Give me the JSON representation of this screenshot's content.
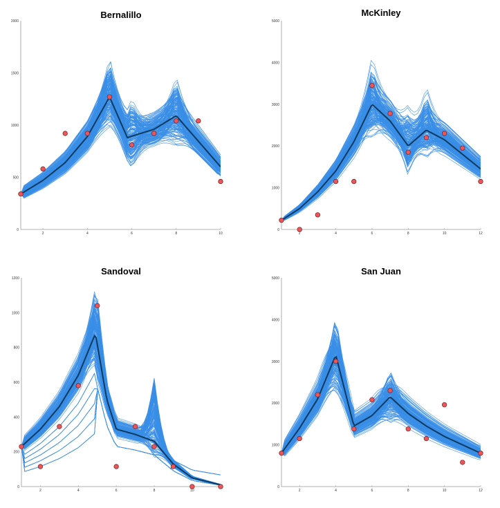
{
  "colors": {
    "ensemble": "#3a8ee6",
    "mean": "#0d3a5e",
    "observed_fill": "#e8575b",
    "observed_stroke": "#7a1c1c",
    "axis": "#999999"
  },
  "chart_data": [
    {
      "type": "line",
      "title": "Bernalillo",
      "xlabel": "",
      "ylabel": "",
      "xlim": [
        1,
        10
      ],
      "ylim": [
        0,
        2000
      ],
      "xticks": [
        2,
        4,
        6,
        8,
        10
      ],
      "yticks": [
        0,
        500,
        1000,
        1500,
        2000
      ],
      "grid": false,
      "series": [
        {
          "role": "mean",
          "x": [
            1,
            2,
            3,
            4,
            5,
            5.8,
            7,
            8,
            10
          ],
          "y": [
            340,
            470,
            640,
            890,
            1270,
            880,
            960,
            1090,
            600
          ]
        },
        {
          "role": "observed",
          "x": [
            1,
            2,
            3,
            4,
            5,
            6,
            7,
            8,
            9,
            10
          ],
          "y": [
            340,
            580,
            920,
            920,
            1270,
            810,
            920,
            1040,
            1040,
            460
          ]
        }
      ],
      "ensemble": {
        "peaks": [
          [
            5,
            1720,
            1060
          ],
          [
            6,
            1380,
            520
          ],
          [
            8,
            1560,
            800
          ]
        ]
      }
    },
    {
      "type": "line",
      "title": "McKinley",
      "xlabel": "",
      "ylabel": "",
      "xlim": [
        1,
        12
      ],
      "ylim": [
        0,
        5000
      ],
      "xticks": [
        2,
        4,
        6,
        8,
        10,
        12
      ],
      "yticks": [
        0,
        1000,
        2000,
        3000,
        4000,
        5000
      ],
      "grid": false,
      "series": [
        {
          "role": "mean",
          "x": [
            1,
            2,
            3,
            4,
            5,
            6,
            7,
            8,
            9,
            10,
            11,
            12
          ],
          "y": [
            220,
            500,
            900,
            1400,
            2100,
            3000,
            2600,
            2000,
            2380,
            2150,
            1800,
            1450
          ]
        },
        {
          "role": "observed",
          "x": [
            1,
            2,
            3,
            4,
            5,
            6,
            7,
            8,
            9,
            10,
            11,
            12
          ],
          "y": [
            220,
            0,
            350,
            1150,
            1150,
            3450,
            2780,
            1850,
            2200,
            2300,
            1950,
            1150
          ]
        }
      ],
      "ensemble": {
        "peaks": [
          [
            6,
            4100,
            2100
          ],
          [
            8,
            3100,
            1100
          ],
          [
            9,
            3500,
            1600
          ]
        ]
      }
    },
    {
      "type": "line",
      "title": "Sandoval",
      "xlabel": "",
      "ylabel": "",
      "xlim": [
        1,
        11.5
      ],
      "ylim": [
        0,
        1200
      ],
      "xticks": [
        2,
        4,
        6,
        8,
        10
      ],
      "yticks": [
        0,
        200,
        400,
        600,
        800,
        1000,
        1200
      ],
      "grid": false,
      "series": [
        {
          "role": "mean",
          "x": [
            1,
            2,
            3,
            4,
            4.9,
            5.5,
            6,
            7,
            8,
            9,
            10,
            11.5
          ],
          "y": [
            230,
            330,
            460,
            640,
            880,
            500,
            330,
            300,
            260,
            130,
            50,
            10
          ]
        },
        {
          "role": "observed",
          "x": [
            1,
            2,
            3,
            4,
            5,
            6,
            7,
            8,
            9,
            10,
            11.5
          ],
          "y": [
            230,
            115,
            345,
            580,
            1040,
            115,
            345,
            230,
            115,
            0,
            0
          ]
        }
      ],
      "ensemble": {
        "peaks": [
          [
            5,
            1190,
            600
          ],
          [
            8,
            890,
            150
          ]
        ]
      }
    },
    {
      "type": "line",
      "title": "San Juan",
      "xlabel": "",
      "ylabel": "",
      "xlim": [
        1,
        12
      ],
      "ylim": [
        0,
        5000
      ],
      "xticks": [
        2,
        4,
        6,
        8,
        10,
        12
      ],
      "yticks": [
        0,
        1000,
        2000,
        3000,
        4000,
        5000
      ],
      "grid": false,
      "series": [
        {
          "role": "mean",
          "x": [
            1,
            2,
            3,
            4,
            5,
            6,
            7,
            8,
            9,
            10,
            11,
            12
          ],
          "y": [
            800,
            1400,
            2100,
            3150,
            1450,
            1700,
            2150,
            1750,
            1450,
            1200,
            1000,
            800
          ]
        },
        {
          "role": "observed",
          "x": [
            1,
            2,
            3,
            4,
            5,
            6,
            7,
            8,
            9,
            10,
            11,
            12
          ],
          "y": [
            800,
            1150,
            2200,
            3000,
            1380,
            2080,
            2300,
            1380,
            1150,
            1960,
            580,
            800
          ]
        }
      ],
      "ensemble": {
        "peaks": [
          [
            4,
            4300,
            2300
          ],
          [
            7,
            2900,
            1500
          ]
        ]
      }
    }
  ]
}
